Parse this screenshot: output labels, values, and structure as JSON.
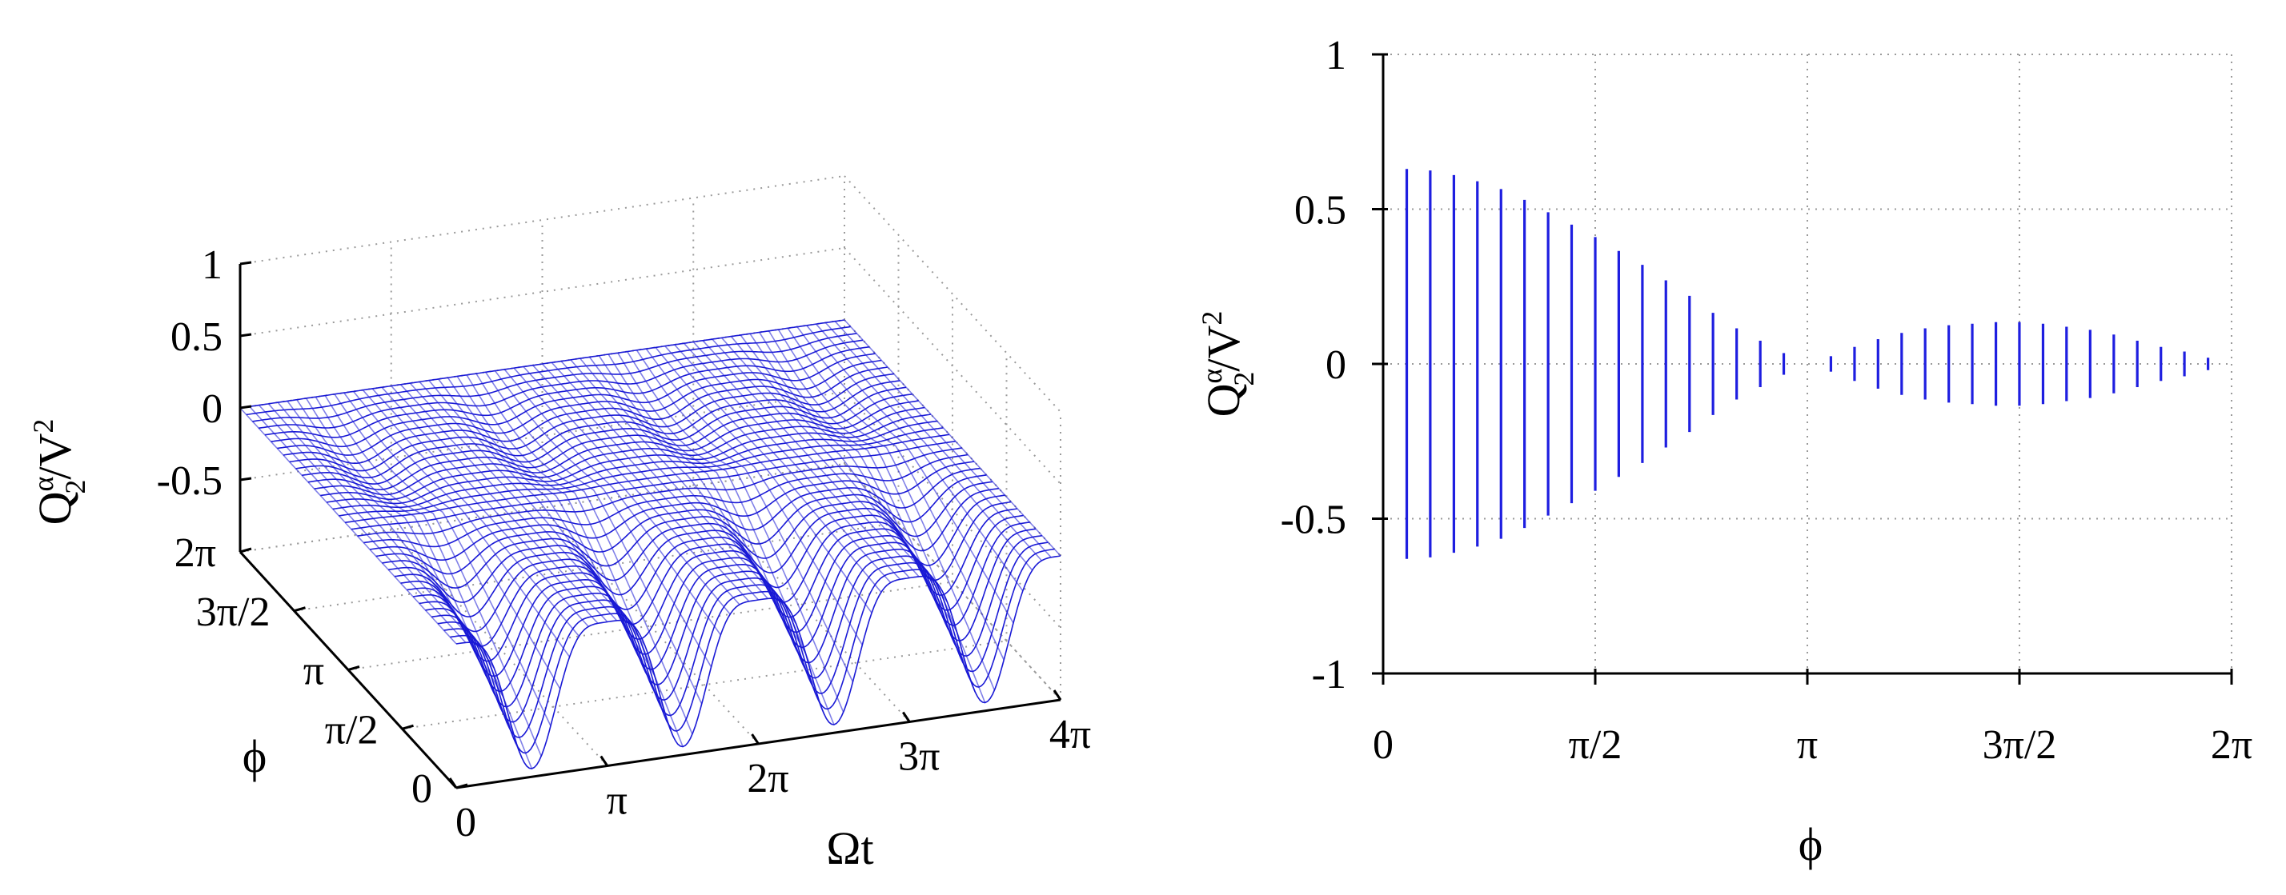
{
  "chart_data": [
    {
      "type": "surface",
      "title": "",
      "xlabel": "Ωt",
      "ylabel": "ϕ",
      "zlabel_main": "Q",
      "zlabel_sup": "α",
      "zlabel_sub": "2",
      "zlabel_tail": "/V",
      "zlabel_tail_sup": "2",
      "x_range": [
        0,
        12.566
      ],
      "y_range": [
        0,
        6.283
      ],
      "z_range": [
        -1,
        1
      ],
      "x_ticks": [
        "0",
        "π",
        "2π",
        "3π",
        "4π"
      ],
      "y_ticks": [
        "0",
        "π/2",
        "π",
        "3π/2",
        "2π"
      ],
      "z_ticks": [
        "1",
        "0.5",
        "0",
        "-0.5"
      ],
      "color": "#1a1ad6",
      "surface_description": "oscillation in Ωt with 4 periods; amplitude largest near ϕ=0 (min about -0.8) decaying toward ϕ=π",
      "num_curves": 36,
      "periods": 4
    },
    {
      "type": "bar",
      "xlabel": "ϕ",
      "ylabel_main": "Q",
      "ylabel_sup": "α",
      "ylabel_sub": "2",
      "ylabel_tail": "/V",
      "ylabel_tail_sup": "2",
      "xlim": [
        0,
        6.2832
      ],
      "ylim": [
        -1,
        1
      ],
      "x_ticks": [
        "0",
        "π/2",
        "π",
        "3π/2",
        "2π"
      ],
      "y_ticks": [
        "1",
        "0.5",
        "0",
        "-0.5",
        "-1"
      ],
      "color": "#1e1ee0",
      "phi": [
        0.175,
        0.349,
        0.524,
        0.698,
        0.873,
        1.047,
        1.222,
        1.396,
        1.571,
        1.745,
        1.92,
        2.094,
        2.269,
        2.443,
        2.618,
        2.793,
        2.967,
        3.316,
        3.491,
        3.665,
        3.84,
        4.014,
        4.189,
        4.363,
        4.538,
        4.712,
        4.887,
        5.061,
        5.236,
        5.411,
        5.585,
        5.76,
        5.934,
        6.109
      ],
      "half_range": [
        0.63,
        0.625,
        0.61,
        0.59,
        0.565,
        0.53,
        0.49,
        0.45,
        0.41,
        0.365,
        0.32,
        0.27,
        0.22,
        0.165,
        0.115,
        0.075,
        0.035,
        0.025,
        0.055,
        0.08,
        0.1,
        0.115,
        0.125,
        0.13,
        0.135,
        0.135,
        0.13,
        0.12,
        0.11,
        0.095,
        0.075,
        0.055,
        0.04,
        0.02
      ]
    }
  ]
}
